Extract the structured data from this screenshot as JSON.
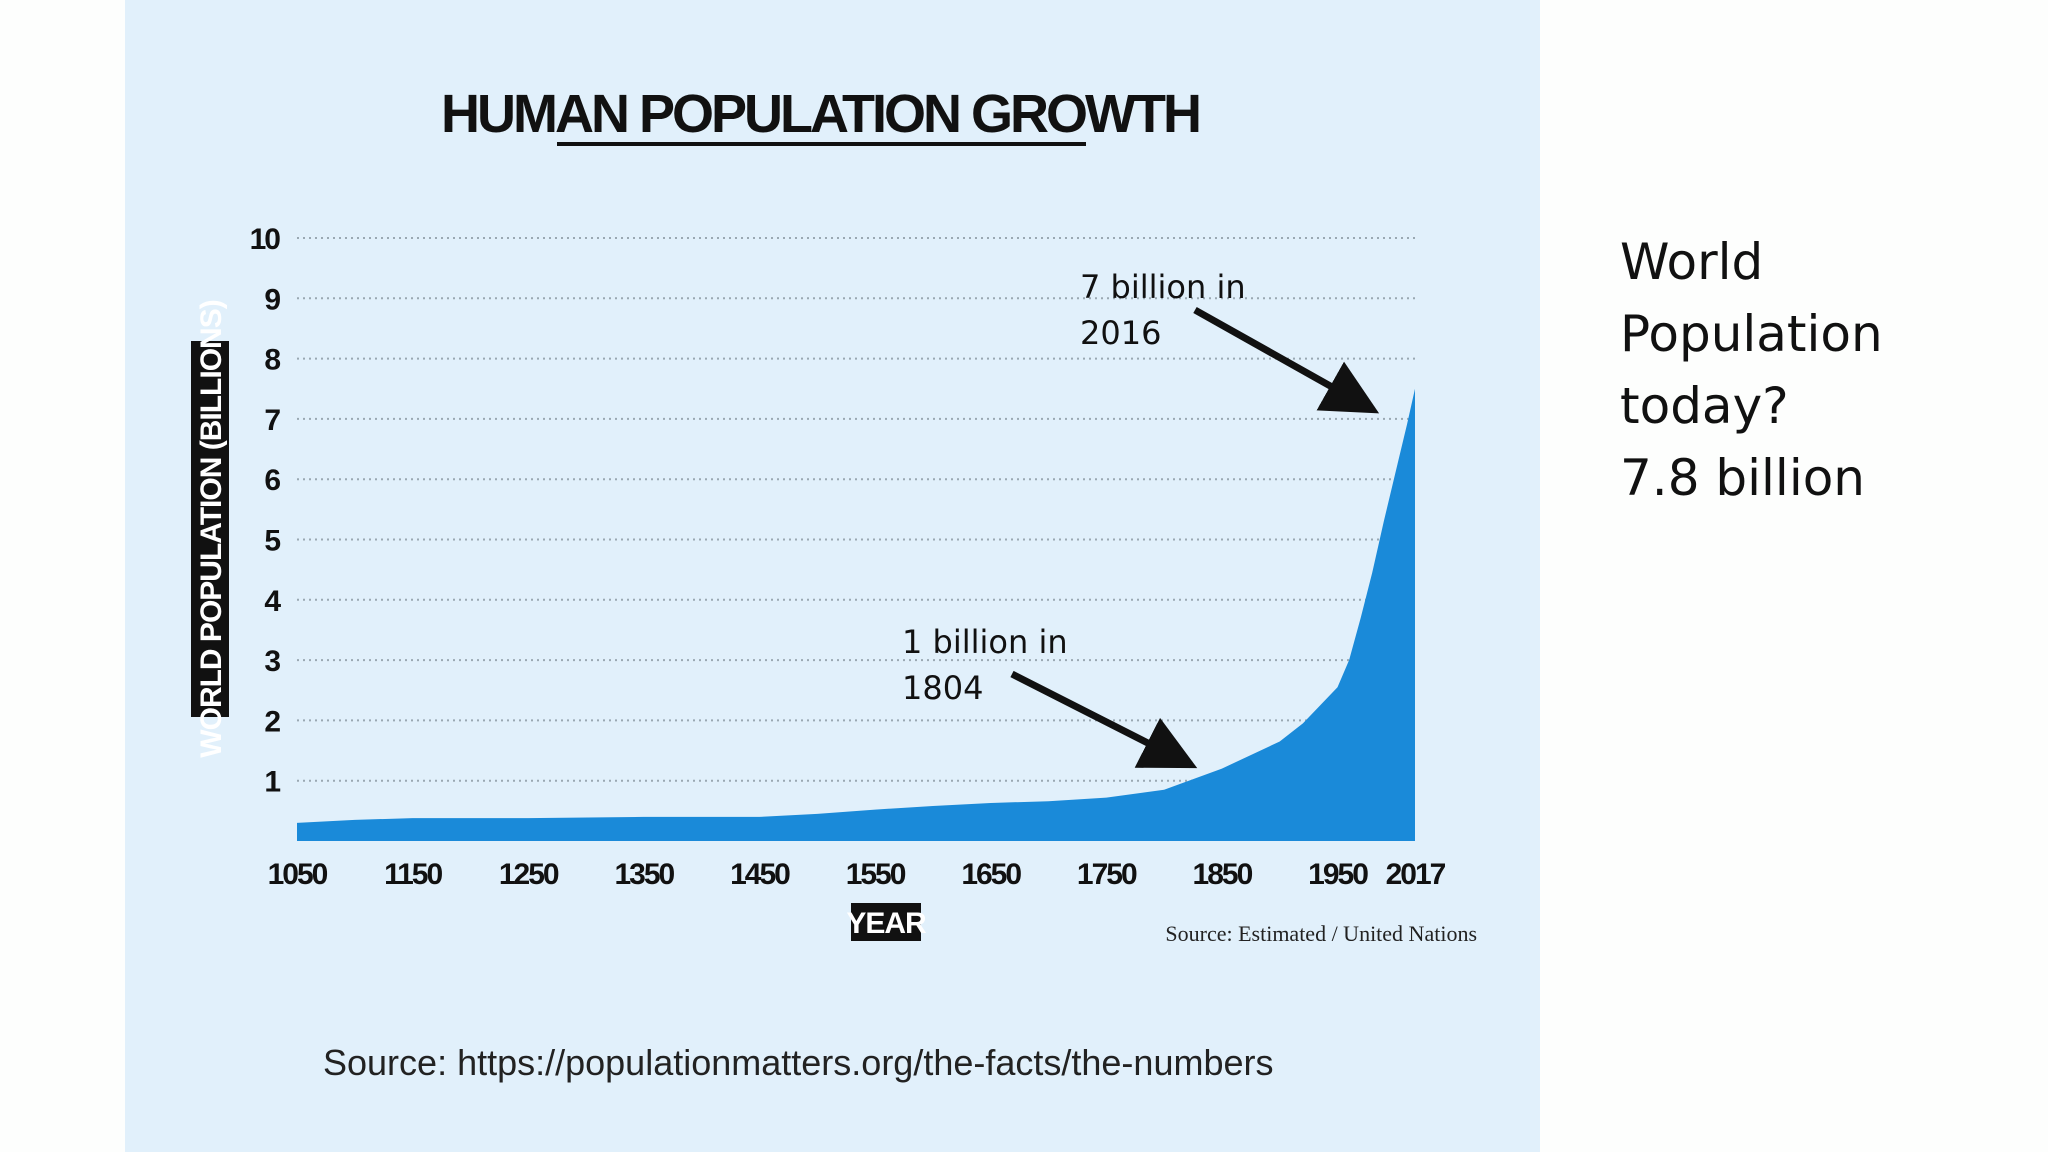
{
  "side_text": {
    "lines": [
      "World",
      "Population",
      "today?",
      "7.8 billion"
    ]
  },
  "figure_source": "Source: https://populationmatters.org/the-facts/the-numbers",
  "chart_data": {
    "type": "area",
    "title": "HUMAN POPULATION GROWTH",
    "xlabel": "YEAR",
    "ylabel": "WORLD POPULATION (BILLIONS)",
    "xlim": [
      1050,
      2017
    ],
    "ylim": [
      0,
      10
    ],
    "x_ticks": [
      "1050",
      "1150",
      "1250",
      "1350",
      "1450",
      "1550",
      "1650",
      "1750",
      "1850",
      "1950",
      "2017"
    ],
    "y_ticks": [
      "1",
      "2",
      "3",
      "4",
      "5",
      "6",
      "7",
      "8",
      "9",
      "10"
    ],
    "grid": true,
    "color": "#1a8ad9",
    "source_note": "Source: Estimated / United Nations",
    "series": [
      {
        "x": [
          1050,
          1100,
          1150,
          1250,
          1350,
          1450,
          1500,
          1550,
          1600,
          1650,
          1700,
          1750,
          1800,
          1850,
          1900,
          1920,
          1950,
          1960,
          1970,
          1980,
          1990,
          2000,
          2010,
          2017
        ],
        "y": [
          0.3,
          0.35,
          0.38,
          0.38,
          0.4,
          0.4,
          0.45,
          0.52,
          0.58,
          0.63,
          0.66,
          0.72,
          0.85,
          1.2,
          1.65,
          1.95,
          2.55,
          3.0,
          3.7,
          4.45,
          5.3,
          6.1,
          6.9,
          7.5
        ]
      }
    ],
    "annotations": [
      {
        "lines": [
          "7 billion in",
          "2016"
        ],
        "x": 2016,
        "y": 7
      },
      {
        "lines": [
          "1 billion in",
          "1804"
        ],
        "x": 1804,
        "y": 1
      }
    ]
  }
}
